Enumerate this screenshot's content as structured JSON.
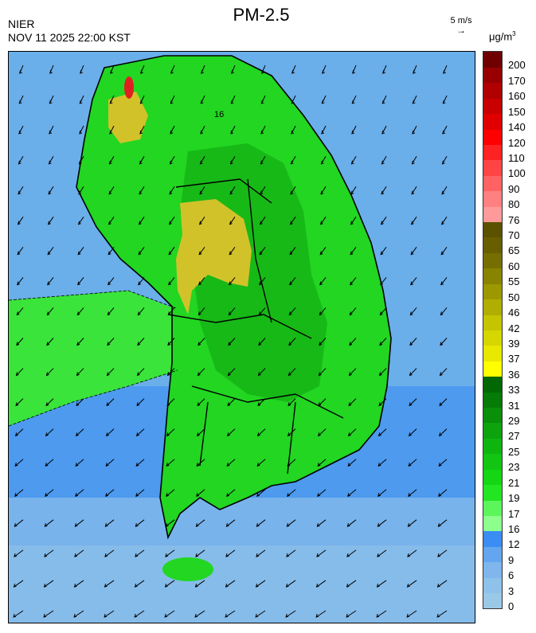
{
  "title": "PM-2.5",
  "org": "NIER",
  "datetime": "NOV 11 2025 22:00 KST",
  "wind_reference": {
    "label": "5 m/s",
    "arrow": "→"
  },
  "unit": {
    "base": "μg/m",
    "exp": "3"
  },
  "scale": [
    {
      "label": "0",
      "color": "#9ac9e8"
    },
    {
      "label": "3",
      "color": "#8ec2ea"
    },
    {
      "label": "6",
      "color": "#7fb6ec"
    },
    {
      "label": "9",
      "color": "#63a6ef"
    },
    {
      "label": "12",
      "color": "#3b8df3"
    },
    {
      "label": "16",
      "color": "#8cff8c"
    },
    {
      "label": "17",
      "color": "#5cf55c"
    },
    {
      "label": "19",
      "color": "#22e622"
    },
    {
      "label": "21",
      "color": "#14d614"
    },
    {
      "label": "23",
      "color": "#12c512"
    },
    {
      "label": "25",
      "color": "#0fb50f"
    },
    {
      "label": "27",
      "color": "#0ca30c"
    },
    {
      "label": "29",
      "color": "#098f09"
    },
    {
      "label": "31",
      "color": "#067b06"
    },
    {
      "label": "33",
      "color": "#036803"
    },
    {
      "label": "36",
      "color": "#ffff00"
    },
    {
      "label": "37",
      "color": "#e8e800"
    },
    {
      "label": "39",
      "color": "#d6d600"
    },
    {
      "label": "42",
      "color": "#c4c400"
    },
    {
      "label": "46",
      "color": "#b0ae00"
    },
    {
      "label": "50",
      "color": "#9c9800"
    },
    {
      "label": "55",
      "color": "#888400"
    },
    {
      "label": "60",
      "color": "#766e00"
    },
    {
      "label": "65",
      "color": "#685e00"
    },
    {
      "label": "70",
      "color": "#5b5200"
    },
    {
      "label": "76",
      "color": "#ff9a9a"
    },
    {
      "label": "80",
      "color": "#ff8080"
    },
    {
      "label": "90",
      "color": "#ff6262"
    },
    {
      "label": "100",
      "color": "#ff4444"
    },
    {
      "label": "110",
      "color": "#ff2222"
    },
    {
      "label": "120",
      "color": "#ff0000"
    },
    {
      "label": "140",
      "color": "#e00000"
    },
    {
      "label": "150",
      "color": "#c80000"
    },
    {
      "label": "160",
      "color": "#b00000"
    },
    {
      "label": "170",
      "color": "#980000"
    },
    {
      "label": "200",
      "color": "#700000"
    }
  ],
  "map": {
    "contour_label": "16",
    "colors": {
      "sea": "#6aaeea",
      "sea_deep": "#3a8cf2",
      "sea_light": "#9cc8ea",
      "land": "#22d622",
      "land_dark": "#0ea20e",
      "plume": "#3ae43a",
      "haze": "#d2c22a",
      "hotspot": "#e02020"
    }
  }
}
